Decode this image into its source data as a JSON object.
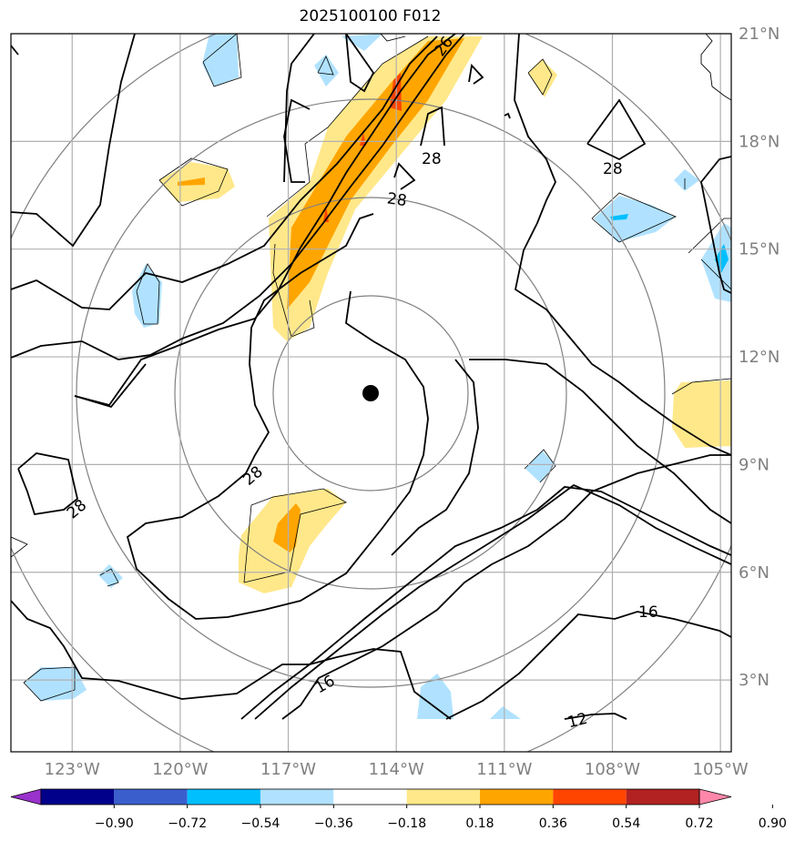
{
  "title": "2025100100 F012",
  "lat_labels": [
    "21°N",
    "18°N",
    "15°N",
    "12°N",
    "9°N",
    "6°N",
    "3°N"
  ],
  "lat_values": [
    21,
    18,
    15,
    12,
    9,
    6,
    3
  ],
  "lon_labels": [
    "123°W",
    "120°W",
    "117°W",
    "114°W",
    "111°W",
    "108°W",
    "105°W"
  ],
  "lon_values": [
    -123,
    -120,
    -117,
    -114,
    -111,
    -108,
    -105
  ],
  "map_extent": {
    "lon": [
      -124.7,
      -104.7
    ],
    "lat": [
      1.0,
      21.0
    ]
  },
  "storm_center": {
    "lon": -114.0,
    "lat": 11.1
  },
  "contour_labels": [
    "28",
    "28",
    "28",
    "28",
    "28",
    "26",
    "16",
    "16",
    "12"
  ],
  "colorbar": {
    "tick_labels": [
      "−0.90",
      "−0.72",
      "−0.54",
      "−0.36",
      "−0.18",
      "0.18",
      "0.36",
      "0.54",
      "0.72",
      "0.90"
    ],
    "colors": [
      "#9932cc",
      "#00008b",
      "#3a5fcd",
      "#00bfff",
      "#b0e2ff",
      "#ffffff",
      "#ffe88a",
      "#ffa500",
      "#ff4500",
      "#b22222",
      "#ff88aa"
    ]
  }
}
